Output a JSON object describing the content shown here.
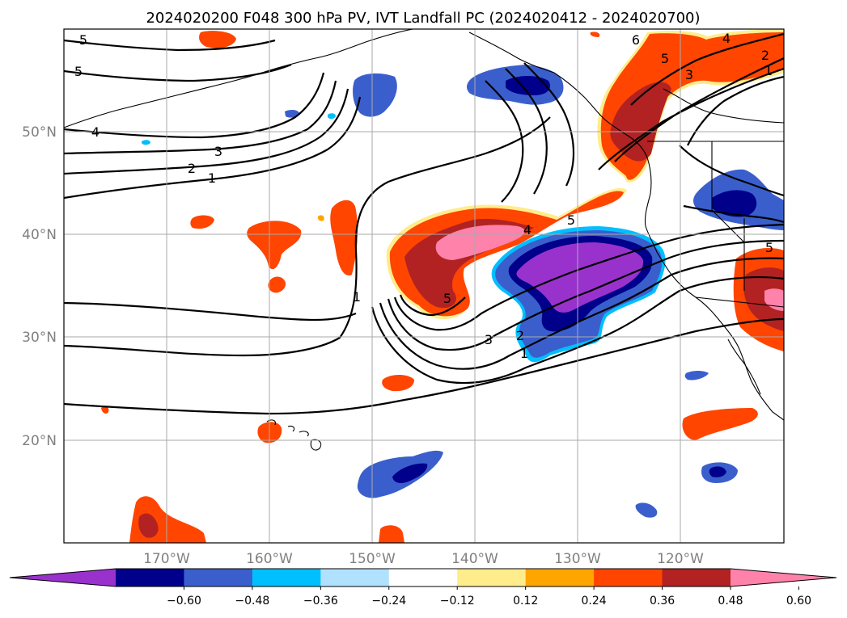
{
  "title": "2024020200 F048 300 hPa PV, IVT Landfall PC (2024020412 - 2024020700)",
  "map": {
    "lon_ticks": [
      "170°W",
      "160°W",
      "150°W",
      "140°W",
      "130°W",
      "120°W"
    ],
    "lat_ticks": [
      "50°N",
      "40°N",
      "30°N",
      "20°N"
    ],
    "lon_range": [
      -180,
      -110
    ],
    "lat_range": [
      10,
      60
    ],
    "grid": true
  },
  "colorbar": {
    "ticks": [
      "−0.60",
      "−0.48",
      "−0.36",
      "−0.24",
      "−0.12",
      "0.12",
      "0.24",
      "0.36",
      "0.48",
      "0.60"
    ],
    "colors": [
      "#9932cc",
      "#00008b",
      "#3a5fcd",
      "#00bfff",
      "#b0e2ff",
      "#ffffff",
      "#ffec8b",
      "#ffa500",
      "#ff4500",
      "#b22222",
      "#ff82ab"
    ]
  },
  "contour_labels": [
    "5",
    "5",
    "4",
    "3",
    "2",
    "1",
    "1",
    "5",
    "4",
    "5",
    "3",
    "2",
    "1",
    "6",
    "5",
    "4",
    "3",
    "2",
    "1",
    "5"
  ]
}
